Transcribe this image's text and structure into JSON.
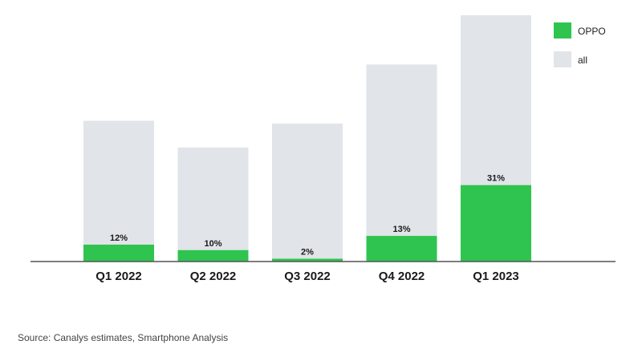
{
  "chart_data": {
    "type": "bar",
    "categories": [
      "Q1 2022",
      "Q2 2022",
      "Q3 2022",
      "Q4 2022",
      "Q1 2023"
    ],
    "series": [
      {
        "name": "all",
        "values": [
          100,
          81,
          98,
          140,
          175
        ]
      },
      {
        "name": "OPPO",
        "values": [
          12,
          8.1,
          2,
          18.2,
          54.3
        ],
        "labels": [
          "12%",
          "10%",
          "2%",
          "13%",
          "31%"
        ]
      }
    ],
    "ylim": [
      0,
      175
    ],
    "grid": false,
    "legend": "top-right",
    "colors": {
      "OPPO": "#2fc44f",
      "all": "#e1e4e8",
      "axis": "#555555"
    }
  },
  "source": "Source: Canalys estimates, Smartphone Analysis"
}
